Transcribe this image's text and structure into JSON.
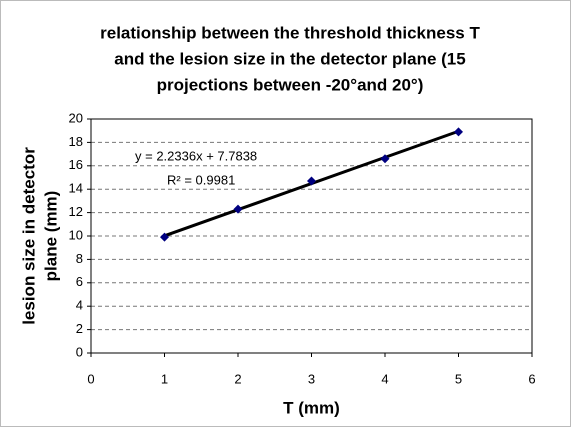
{
  "chart_data": {
    "type": "scatter",
    "title_lines": [
      "relationship between the threshold thickness T",
      "and the lesion size in the detector plane (15",
      "projections between -20°and 20°)"
    ],
    "xlabel": "T (mm)",
    "ylabel_lines": [
      "lesion size in detector",
      "plane (mm)"
    ],
    "series": [
      {
        "color": "#000080",
        "x": [
          1,
          2,
          3,
          4,
          5
        ],
        "values": [
          9.9,
          12.3,
          14.7,
          16.6,
          18.9
        ]
      }
    ],
    "trendline": {
      "slope": 2.2336,
      "intercept": 7.7838,
      "equation": "y = 2.2336x + 7.7838",
      "r2": "R² = 0.9981",
      "color": "#000000"
    },
    "xlim": [
      0,
      6
    ],
    "xticks": [
      0,
      1,
      2,
      3,
      4,
      5,
      6
    ],
    "ylim": [
      0,
      20
    ],
    "yticks": [
      0,
      2,
      4,
      6,
      8,
      10,
      12,
      14,
      16,
      18,
      20
    ],
    "grid": true
  }
}
